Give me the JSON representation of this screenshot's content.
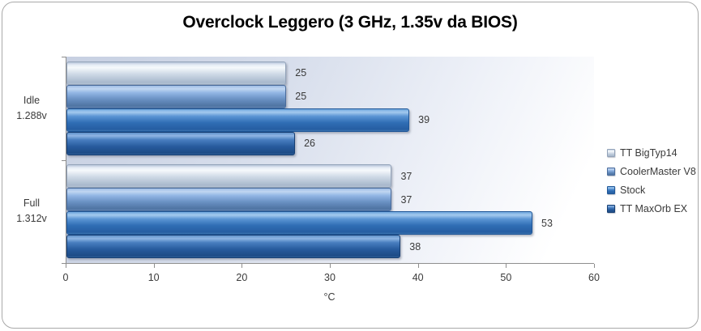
{
  "frame": {
    "background": "#ffffff",
    "border_color": "#a9a9a9"
  },
  "chart_data": {
    "type": "bar",
    "orientation": "horizontal",
    "title": "Overclock Leggero (3 GHz, 1.35v da BIOS)",
    "categories": [
      {
        "label": "Idle",
        "sub": "1.288v"
      },
      {
        "label": "Full",
        "sub": "1.312v"
      }
    ],
    "series": [
      {
        "name": "TT BigTyp14",
        "values": [
          25,
          37
        ],
        "color": "#c3d0e0"
      },
      {
        "name": "CoolerMaster V8",
        "values": [
          25,
          37
        ],
        "color": "#6d92c3"
      },
      {
        "name": "Stock",
        "values": [
          39,
          53
        ],
        "color": "#2e6cb2"
      },
      {
        "name": "TT MaxOrb EX",
        "values": [
          26,
          38
        ],
        "color": "#27589a"
      }
    ],
    "xlabel": "°C",
    "xlim": [
      0,
      60
    ],
    "xticks": [
      0,
      10,
      20,
      30,
      40,
      50,
      60
    ],
    "grid": false,
    "data_labels": true,
    "legend_position": "right",
    "bar_order_top_to_bottom": [
      "TT BigTyp14",
      "CoolerMaster V8",
      "Stock",
      "TT MaxOrb EX"
    ],
    "plot_background": "gradient #c7d0e2 to #ffffff",
    "axis_color": "#8e8e8e",
    "text_color": "#3a3a3a"
  }
}
